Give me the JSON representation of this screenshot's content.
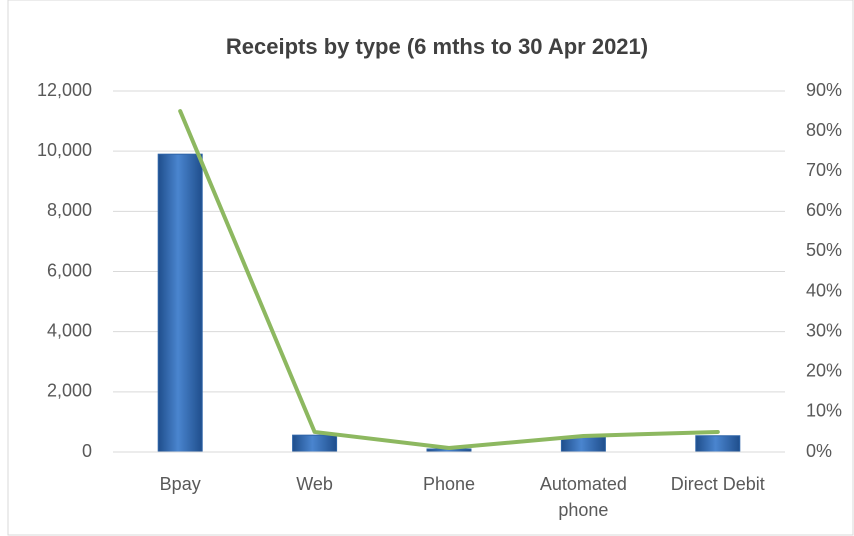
{
  "chart_data": {
    "type": "bar+line",
    "title": "Receipts by type (6 mths to 30 Apr 2021)",
    "categories": [
      "Bpay",
      "Web",
      "Phone",
      "Automated phone",
      "Direct Debit"
    ],
    "series": [
      {
        "type": "bar",
        "color": "#2e64a8",
        "values": [
          9900,
          560,
          100,
          500,
          540
        ]
      },
      {
        "type": "line",
        "axis": "y2",
        "color": "#8db860",
        "values": [
          85,
          5,
          1,
          4,
          5
        ]
      }
    ],
    "ylim": [
      0,
      12000
    ],
    "yticks": [
      0,
      {
        "value": 2000,
        "label": "2,000"
      },
      {
        "value": 4000,
        "label": "4,000"
      },
      {
        "value": 6000,
        "label": "6,000"
      },
      {
        "value": 8000,
        "label": "8,000"
      },
      {
        "value": 10000,
        "label": "10,000"
      },
      {
        "value": 12000,
        "label": "12,000"
      }
    ],
    "y2lim": [
      0,
      90
    ],
    "y2ticks": [
      {
        "value": 0,
        "label": "0%"
      },
      {
        "value": 10,
        "label": "10%"
      },
      {
        "value": 20,
        "label": "20%"
      },
      {
        "value": 30,
        "label": "30%"
      },
      {
        "value": 40,
        "label": "40%"
      },
      {
        "value": 50,
        "label": "50%"
      },
      {
        "value": 60,
        "label": "60%"
      },
      {
        "value": 70,
        "label": "70%"
      },
      {
        "value": 80,
        "label": "80%"
      },
      {
        "value": 90,
        "label": "90%"
      }
    ],
    "grid": true
  }
}
